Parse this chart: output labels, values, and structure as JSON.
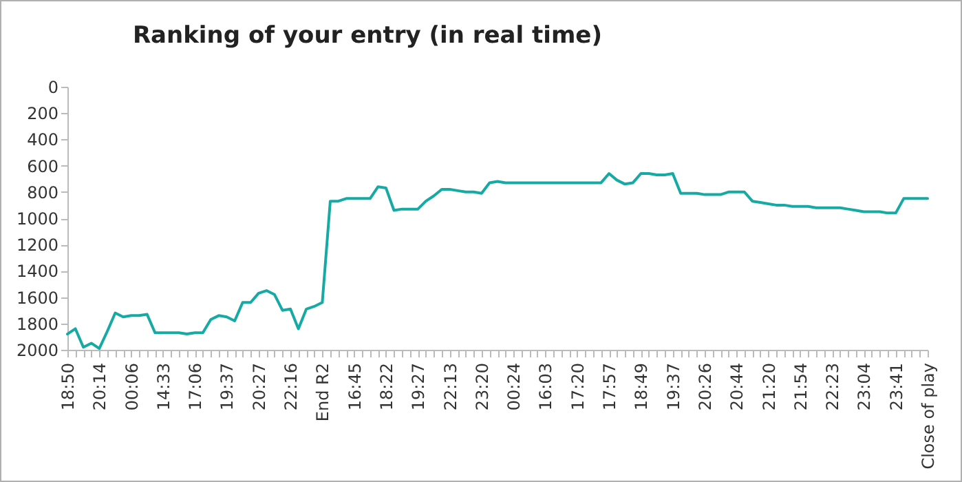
{
  "chart_data": {
    "type": "line",
    "title": "Ranking of your entry (in real time)",
    "categories": [
      "18:50",
      null,
      null,
      null,
      "20:14",
      null,
      null,
      null,
      "00:06",
      null,
      null,
      null,
      "14:33",
      null,
      null,
      null,
      "17:06",
      null,
      null,
      null,
      "19:37",
      null,
      null,
      null,
      "20:27",
      null,
      null,
      null,
      "22:16",
      null,
      null,
      null,
      "End R2",
      null,
      null,
      null,
      "16:45",
      null,
      null,
      null,
      "18:22",
      null,
      null,
      null,
      "19:27",
      null,
      null,
      null,
      "22:13",
      null,
      null,
      null,
      "23:20",
      null,
      null,
      null,
      "00:24",
      null,
      null,
      null,
      "16:03",
      null,
      null,
      null,
      "17:20",
      null,
      null,
      null,
      "17:57",
      null,
      null,
      null,
      "18:49",
      null,
      null,
      null,
      "19:37",
      null,
      null,
      null,
      "20:26",
      null,
      null,
      null,
      "20:44",
      null,
      null,
      null,
      "21:20",
      null,
      null,
      null,
      "21:54",
      null,
      null,
      null,
      "22:23",
      null,
      null,
      null,
      "23:04",
      null,
      null,
      null,
      "23:41",
      null,
      null,
      null,
      "Close of play"
    ],
    "values": [
      1880,
      1840,
      1980,
      1950,
      1990,
      1860,
      1720,
      1750,
      1740,
      1740,
      1730,
      1870,
      1870,
      1870,
      1870,
      1880,
      1870,
      1870,
      1770,
      1740,
      1750,
      1780,
      1640,
      1640,
      1570,
      1550,
      1580,
      1700,
      1690,
      1840,
      1690,
      1670,
      1640,
      870,
      870,
      850,
      850,
      850,
      850,
      760,
      770,
      940,
      930,
      930,
      930,
      870,
      830,
      780,
      780,
      790,
      800,
      800,
      810,
      730,
      720,
      730,
      730,
      730,
      730,
      730,
      730,
      730,
      730,
      730,
      730,
      730,
      730,
      730,
      660,
      710,
      740,
      730,
      660,
      660,
      670,
      670,
      660,
      810,
      810,
      810,
      820,
      820,
      820,
      800,
      800,
      800,
      870,
      880,
      890,
      900,
      900,
      910,
      910,
      910,
      920,
      920,
      920,
      920,
      930,
      940,
      950,
      950,
      950,
      960,
      960,
      850,
      850,
      850,
      850
    ],
    "color": "#17aaa4",
    "ylim": [
      2000,
      0
    ],
    "yticks": [
      0,
      200,
      400,
      600,
      800,
      1000,
      1200,
      1400,
      1600,
      1800,
      2000
    ],
    "grid": false
  }
}
